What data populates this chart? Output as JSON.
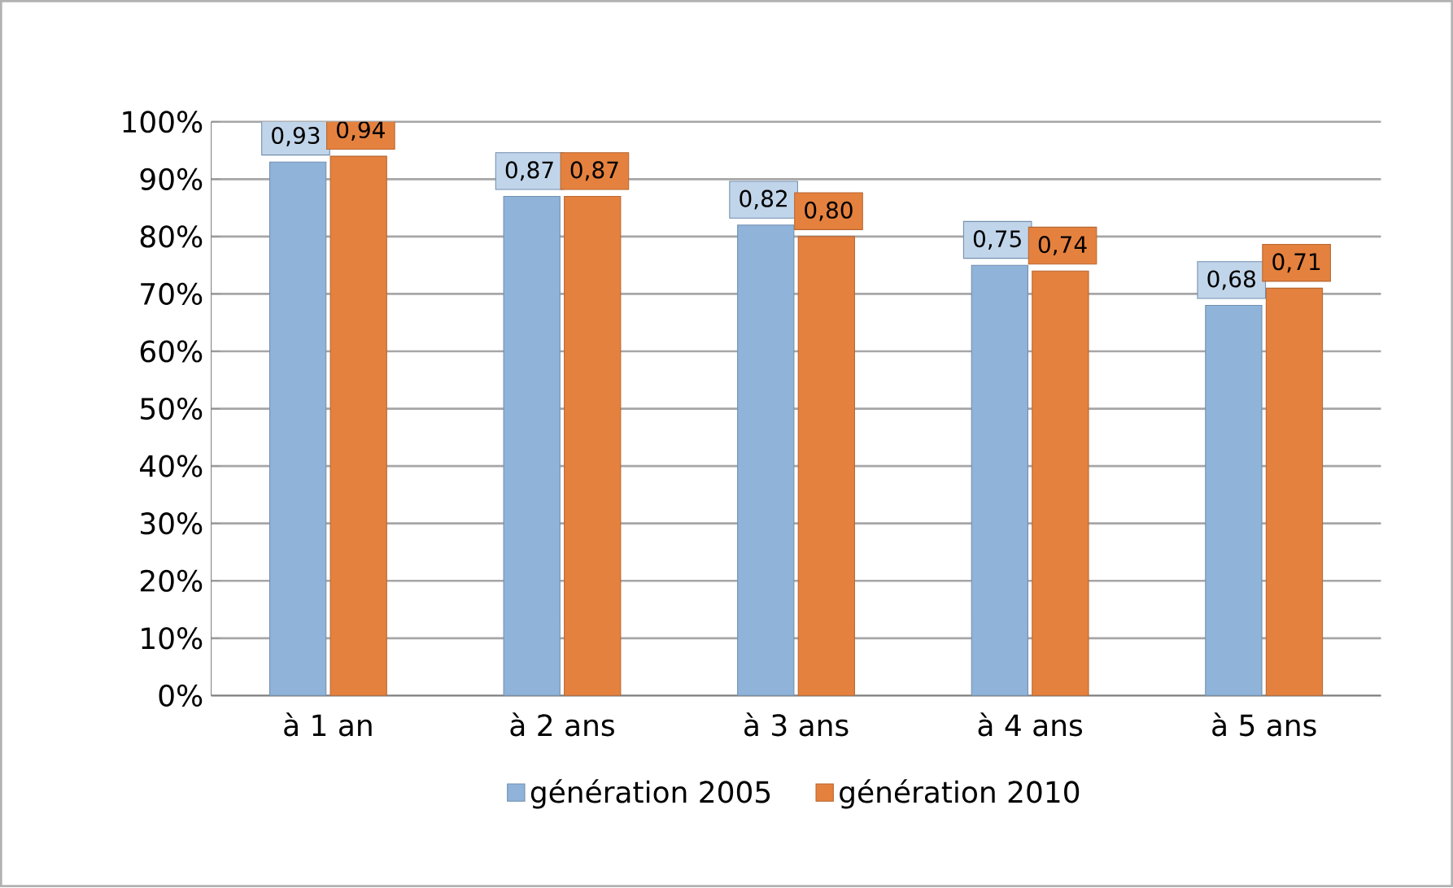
{
  "chart_data": {
    "type": "bar",
    "categories": [
      "à 1 an",
      "à 2 ans",
      "à 3 ans",
      "à 4 ans",
      "à 5 ans"
    ],
    "series": [
      {
        "name": "génération 2005",
        "color": "#8fb3d9",
        "values": [
          0.93,
          0.87,
          0.82,
          0.75,
          0.68
        ],
        "value_labels": [
          "0,93",
          "0,87",
          "0,82",
          "0,75",
          "0,68"
        ]
      },
      {
        "name": "génération 2010",
        "color": "#e5813e",
        "values": [
          0.94,
          0.87,
          0.8,
          0.74,
          0.71
        ],
        "value_labels": [
          "0,94",
          "0,87",
          "0,80",
          "0,74",
          "0,71"
        ]
      }
    ],
    "ylim": [
      0,
      1
    ],
    "yticks": [
      {
        "value": 0,
        "label": "0%"
      },
      {
        "value": 0.1,
        "label": "10%"
      },
      {
        "value": 0.2,
        "label": "20%"
      },
      {
        "value": 0.3,
        "label": "30%"
      },
      {
        "value": 0.4,
        "label": "40%"
      },
      {
        "value": 0.5,
        "label": "50%"
      },
      {
        "value": 0.6,
        "label": "60%"
      },
      {
        "value": 0.7,
        "label": "70%"
      },
      {
        "value": 0.8,
        "label": "80%"
      },
      {
        "value": 0.9,
        "label": "90%"
      },
      {
        "value": 1,
        "label": "100%"
      }
    ],
    "grid": "y",
    "legend": "bottom"
  }
}
